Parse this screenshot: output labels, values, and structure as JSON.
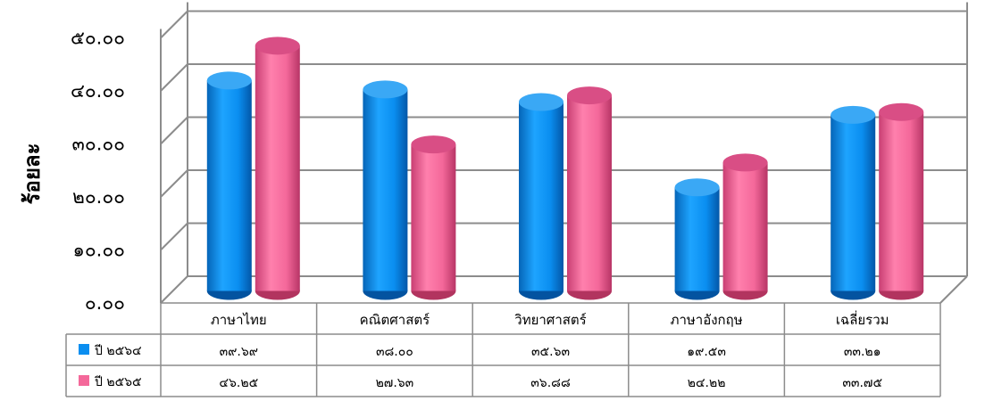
{
  "chart_data": {
    "type": "bar",
    "ylabel": "ร้อยละ",
    "ylim": [
      0,
      50
    ],
    "y_ticks": [
      "๐.๐๐",
      "๑๐.๐๐",
      "๒๐.๐๐",
      "๓๐.๐๐",
      "๔๐.๐๐",
      "๕๐.๐๐"
    ],
    "categories": [
      "ภาษาไทย",
      "คณิตศาสตร์",
      "วิทยาศาสตร์",
      "ภาษาอังกฤษ",
      "เฉลี่ยรวม"
    ],
    "series": [
      {
        "name": "ปี ๒๕๖๔",
        "color": "#0a8ef0",
        "values": [
          39.69,
          38.0,
          35.63,
          19.53,
          33.21
        ],
        "labels": [
          "๓๙.๖๙",
          "๓๘.๐๐",
          "๓๕.๖๓",
          "๑๙.๕๓",
          "๓๓.๒๑"
        ]
      },
      {
        "name": "ปี ๒๕๖๕",
        "color": "#f4689a",
        "values": [
          46.25,
          27.63,
          36.88,
          24.22,
          33.75
        ],
        "labels": [
          "๔๖.๒๕",
          "๒๗.๖๓",
          "๓๖.๘๘",
          "๒๔.๒๒",
          "๓๓.๗๕"
        ]
      }
    ],
    "grid": true,
    "legend": "data-table"
  }
}
